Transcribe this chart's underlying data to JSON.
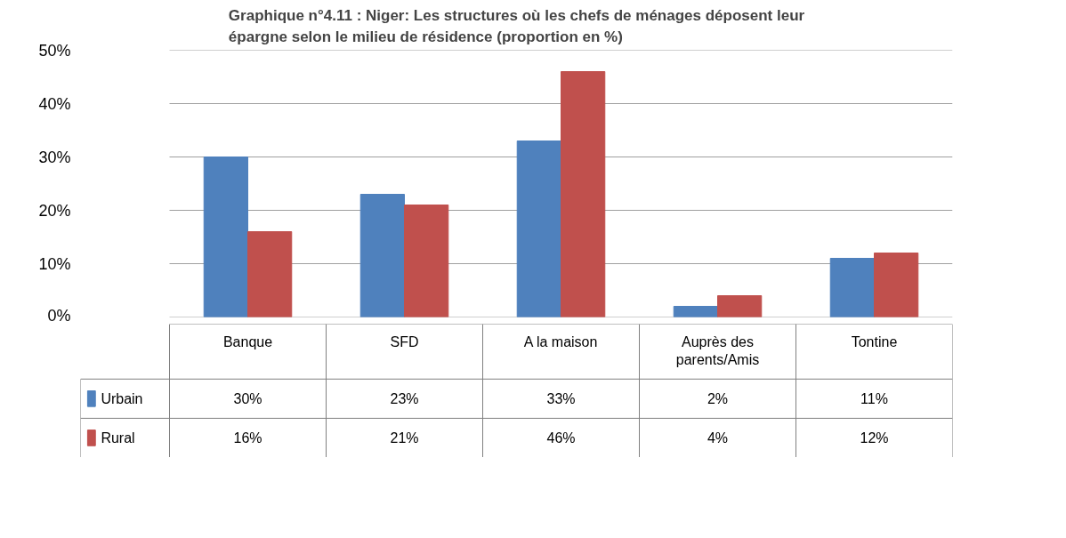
{
  "chart_data": {
    "type": "bar",
    "title": "Graphique n°4.11 : Niger: Les structures où les chefs de ménages déposent leur épargne selon le milieu de résidence (proportion en %)",
    "categories": [
      "Banque",
      "SFD",
      "A la maison",
      "Auprès des parents/Amis",
      "Tontine"
    ],
    "series": [
      {
        "name": "Urbain",
        "color": "#4f81bd",
        "values": [
          30,
          23,
          33,
          2,
          11
        ],
        "value_labels": [
          "30%",
          "23%",
          "33%",
          "2%",
          "11%"
        ]
      },
      {
        "name": "Rural",
        "color": "#c0504d",
        "values": [
          16,
          21,
          46,
          4,
          12
        ],
        "value_labels": [
          "16%",
          "21%",
          "46%",
          "4%",
          "12%"
        ]
      }
    ],
    "ylim": [
      0,
      50
    ],
    "yticks": [
      {
        "value": 0,
        "label": "0%"
      },
      {
        "value": 10,
        "label": "10%"
      },
      {
        "value": 20,
        "label": "20%"
      },
      {
        "value": 30,
        "label": "30%"
      },
      {
        "value": 40,
        "label": "40%"
      },
      {
        "value": 50,
        "label": "50%"
      }
    ],
    "grid": "y",
    "legend": "bottom left"
  }
}
